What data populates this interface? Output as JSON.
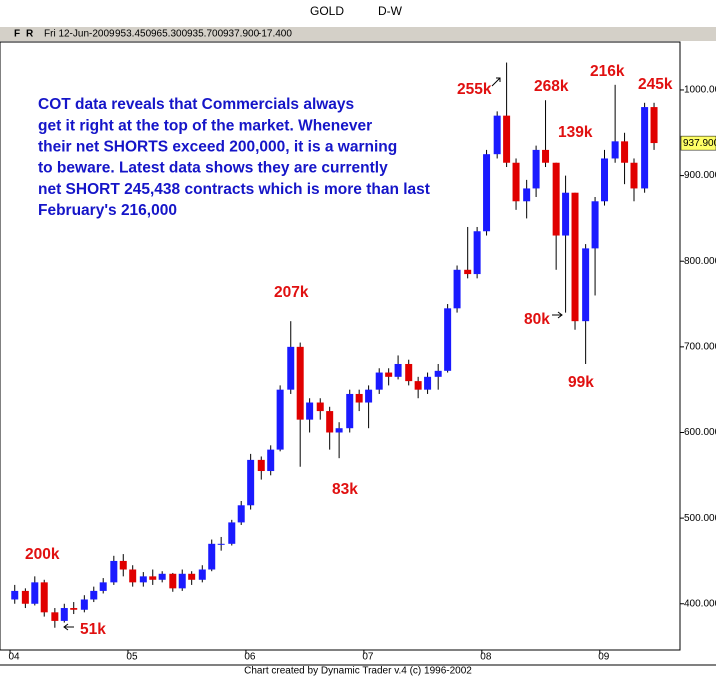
{
  "chart_data": {
    "type": "candlestick",
    "title": "GOLD",
    "subtitle": "D-W",
    "info": [
      "F",
      "R",
      "Fri 12-Jun-2009",
      "953.450",
      "965.300",
      "935.700",
      "937.900",
      "-17.400"
    ],
    "x": [
      2004.04,
      2004.13,
      2004.21,
      2004.29,
      2004.38,
      2004.46,
      2004.54,
      2004.63,
      2004.71,
      2004.79,
      2004.88,
      2004.96,
      2005.04,
      2005.13,
      2005.21,
      2005.29,
      2005.38,
      2005.46,
      2005.54,
      2005.63,
      2005.71,
      2005.79,
      2005.88,
      2005.96,
      2006.04,
      2006.13,
      2006.21,
      2006.29,
      2006.38,
      2006.46,
      2006.54,
      2006.63,
      2006.71,
      2006.79,
      2006.88,
      2006.96,
      2007.04,
      2007.13,
      2007.21,
      2007.29,
      2007.38,
      2007.46,
      2007.54,
      2007.63,
      2007.71,
      2007.79,
      2007.88,
      2007.96,
      2008.04,
      2008.13,
      2008.21,
      2008.29,
      2008.38,
      2008.46,
      2008.54,
      2008.63,
      2008.71,
      2008.79,
      2008.88,
      2008.96,
      2009.04,
      2009.13,
      2009.21,
      2009.29,
      2009.38,
      2009.46
    ],
    "open": [
      405,
      415,
      400,
      425,
      390,
      380,
      395,
      393,
      405,
      415,
      425,
      450,
      440,
      425,
      432,
      428,
      435,
      418,
      435,
      428,
      440,
      470,
      470,
      495,
      515,
      568,
      555,
      580,
      650,
      700,
      615,
      635,
      625,
      600,
      605,
      645,
      635,
      650,
      670,
      665,
      680,
      660,
      650,
      665,
      672,
      745,
      790,
      785,
      835,
      925,
      970,
      915,
      870,
      885,
      930,
      915,
      830,
      880,
      730,
      815,
      870,
      920,
      940,
      915,
      885,
      980
    ],
    "high": [
      422,
      418,
      432,
      428,
      395,
      400,
      402,
      410,
      420,
      430,
      456,
      458,
      445,
      437,
      440,
      438,
      436,
      440,
      438,
      445,
      475,
      478,
      498,
      520,
      575,
      572,
      585,
      655,
      730,
      705,
      640,
      640,
      630,
      612,
      650,
      650,
      655,
      675,
      675,
      690,
      685,
      665,
      670,
      680,
      750,
      795,
      840,
      840,
      930,
      975,
      1032,
      920,
      895,
      935,
      988,
      915,
      900,
      880,
      820,
      875,
      930,
      1006,
      950,
      920,
      985,
      985
    ],
    "low": [
      400,
      395,
      398,
      385,
      372,
      378,
      388,
      390,
      402,
      412,
      422,
      432,
      420,
      420,
      422,
      425,
      414,
      415,
      422,
      425,
      438,
      462,
      468,
      492,
      510,
      545,
      550,
      578,
      645,
      560,
      600,
      615,
      580,
      570,
      600,
      625,
      605,
      645,
      655,
      662,
      655,
      640,
      645,
      650,
      670,
      740,
      780,
      780,
      830,
      920,
      910,
      860,
      850,
      875,
      910,
      790,
      740,
      720,
      680,
      760,
      865,
      915,
      890,
      870,
      880,
      930
    ],
    "close": [
      415,
      400,
      425,
      390,
      380,
      395,
      393,
      405,
      415,
      425,
      450,
      440,
      425,
      432,
      428,
      435,
      418,
      435,
      428,
      440,
      470,
      470,
      495,
      515,
      568,
      555,
      580,
      650,
      700,
      615,
      635,
      625,
      600,
      605,
      645,
      635,
      650,
      670,
      665,
      680,
      660,
      650,
      665,
      672,
      745,
      790,
      785,
      835,
      925,
      970,
      915,
      870,
      885,
      930,
      915,
      830,
      880,
      730,
      815,
      870,
      920,
      940,
      915,
      885,
      980,
      938
    ],
    "up_color": "#1a1aff",
    "down_color": "#e00000",
    "xlim": [
      2003.915,
      2009.68
    ],
    "xticks": [
      {
        "value": 2004,
        "label": "04"
      },
      {
        "value": 2005,
        "label": "05"
      },
      {
        "value": 2006,
        "label": "06"
      },
      {
        "value": 2007,
        "label": "07"
      },
      {
        "value": 2008,
        "label": "08"
      },
      {
        "value": 2009,
        "label": "09"
      }
    ],
    "ylim": [
      346,
      1056
    ],
    "yticks": [
      {
        "value": 400,
        "label": "400.000"
      },
      {
        "value": 500,
        "label": "500.000"
      },
      {
        "value": 600,
        "label": "600.000"
      },
      {
        "value": 700,
        "label": "700.000"
      },
      {
        "value": 800,
        "label": "800.000"
      },
      {
        "value": 900,
        "label": "900.000"
      },
      {
        "value": 1000,
        "label": "1000.000"
      }
    ],
    "last_price": {
      "value": 937.9,
      "label": "937.900"
    },
    "paragraph": [
      "COT data reveals that Commercials always",
      "get it right at the top of the market. Whenever",
      "their net SHORTS exceed 200,000, it is a warning",
      "to beware. Latest data shows they are currently",
      "net SHORT 245,438 contracts which is more than last",
      "February's 216,000"
    ],
    "labels": [
      "200k",
      "51k",
      "207k",
      "83k",
      "255k",
      "268k",
      "139k",
      "80k",
      "99k",
      "216k",
      "245k"
    ],
    "footer": "Chart created by Dynamic Trader v.4  (c) 1996-2002"
  }
}
